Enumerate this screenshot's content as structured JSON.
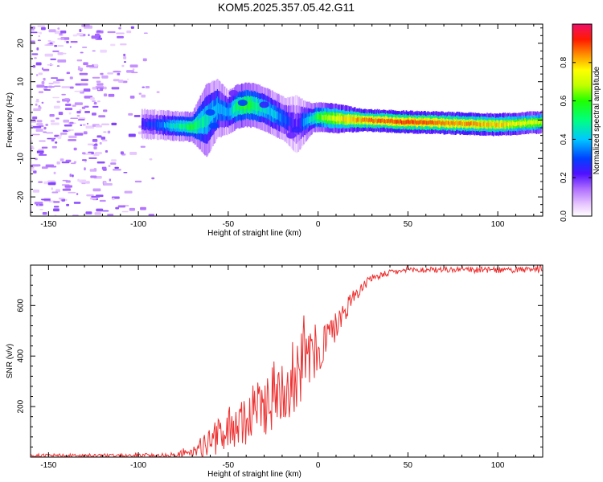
{
  "title": "KOM5.2025.357.05.42.G11",
  "chart_data": [
    {
      "type": "heatmap",
      "name": "spectrogram",
      "xlabel": "Height of straight line (km)",
      "ylabel": "Frequency (Hz)",
      "xlim": [
        -160,
        125
      ],
      "ylim": [
        -25,
        25
      ],
      "xticks": [
        -150,
        -100,
        -50,
        0,
        50,
        100
      ],
      "yticks": [
        -20,
        -10,
        0,
        10,
        20
      ],
      "colorbar": {
        "label": "Normalized spectral amplitude",
        "range": [
          0,
          1
        ],
        "ticks": [
          0.0,
          0.2,
          0.4,
          0.6,
          0.8
        ],
        "tick_labels": [
          "0.0",
          "0.2",
          "0.4",
          "0.6",
          "0.8"
        ]
      },
      "ridge": {
        "x": [
          -98,
          -90,
          -80,
          -70,
          -62,
          -56,
          -50,
          -45,
          -40,
          -36,
          -30,
          -24,
          -18,
          -12,
          -8,
          -3,
          0,
          10,
          25,
          50,
          75,
          100,
          125
        ],
        "freq": [
          -1,
          -1.2,
          -1.5,
          -1.8,
          0,
          3,
          2,
          3.5,
          4,
          3.8,
          3,
          1.5,
          0,
          -1.2,
          -0.5,
          0.5,
          0.8,
          0.4,
          0,
          -0.5,
          -0.8,
          -1.2,
          -0.5
        ],
        "amplitude": [
          0.25,
          0.3,
          0.45,
          0.55,
          0.45,
          0.4,
          0.35,
          0.55,
          0.6,
          0.55,
          0.45,
          0.4,
          0.3,
          0.2,
          0.35,
          0.45,
          0.6,
          0.75,
          0.85,
          0.9,
          0.85,
          0.8,
          0.7
        ],
        "width": [
          2,
          2,
          2,
          2,
          5,
          4,
          3,
          3,
          3,
          3,
          3,
          3,
          3,
          4,
          3,
          2,
          2,
          2,
          1.5,
          1.5,
          1.5,
          1.5,
          1.5
        ]
      },
      "noise_region": [
        -160,
        -85
      ]
    },
    {
      "type": "line",
      "name": "snr",
      "xlabel": "Height of straight line (km)",
      "ylabel": "SNR (v/v)",
      "xlim": [
        -160,
        125
      ],
      "ylim": [
        0,
        760
      ],
      "xticks": [
        -150,
        -100,
        -50,
        0,
        50,
        100
      ],
      "yticks": [
        200,
        400,
        600
      ],
      "color": "#ee3030",
      "trend_x": [
        -160,
        -100,
        -80,
        -70,
        -60,
        -50,
        -40,
        -30,
        -20,
        -10,
        0,
        10,
        20,
        30,
        40,
        50,
        75,
        100,
        125
      ],
      "trend_y": [
        5,
        5,
        8,
        20,
        60,
        110,
        150,
        210,
        270,
        350,
        420,
        520,
        640,
        710,
        730,
        740,
        742,
        740,
        742
      ],
      "spread_y": [
        8,
        8,
        10,
        20,
        60,
        80,
        100,
        130,
        150,
        150,
        110,
        60,
        30,
        15,
        12,
        12,
        12,
        12,
        12
      ]
    }
  ]
}
